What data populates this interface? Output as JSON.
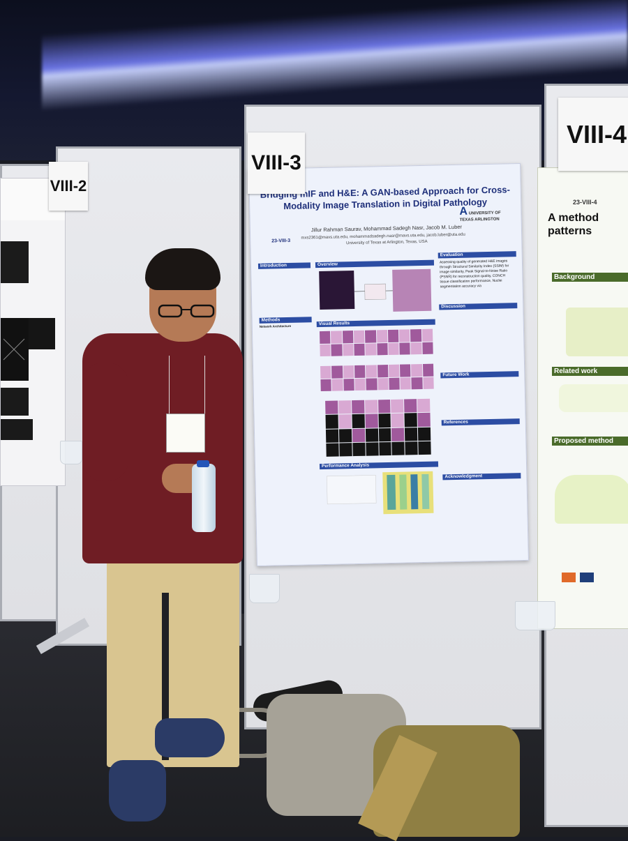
{
  "booths": {
    "left": "VIII-2",
    "center": "VIII-3",
    "right": "VIII-4"
  },
  "poster": {
    "title": "Bridging mIF and H&E: A GAN-based Approach for Cross-Modality Image Translation in Digital Pathology",
    "authors": "Jillur Rahman Saurav, Mohammad Sadegh Nasr, Jacob M. Luber",
    "emails": "mxs2361@mavs.uta.edu, mohammadsadegh.nasr@mavs.uta.edu, jacob.luber@uta.edu",
    "affiliation": "University of Texas at Arlington, Texas, USA",
    "code": "23-VIII-3",
    "logo_text": "UNIVERSITY OF TEXAS ARLINGTON",
    "sections": {
      "introduction": "Introduction",
      "overview": "Overview",
      "evaluation": "Evaluation",
      "methods": "Methods",
      "visual_results": "Visual Results",
      "discussion": "Discussion",
      "future_work": "Future Work",
      "references": "References",
      "performance": "Performance Analysis",
      "acknowledgment": "Acknowledgment"
    },
    "evaluation_text": "Assessing quality of generated H&E images through Structural Similarity Index (SSIM) for image similarity, Peak Signal-to-Noise Ratio (PSNR) for reconstruction quality, CONCH tissue classification performance, Nuclei segmentation accuracy via",
    "network_architecture": "Network Architecture"
  },
  "right_poster": {
    "code": "23-VIII-4",
    "title": "A method patterns",
    "background": "Background",
    "related_work": "Related work",
    "proposed_method": "Proposed method"
  },
  "colors": {
    "poster_header": "#2c4da3",
    "shirt": "#6f1d24",
    "pants": "#d9c590",
    "ceiling_light": "#7a84ff"
  }
}
